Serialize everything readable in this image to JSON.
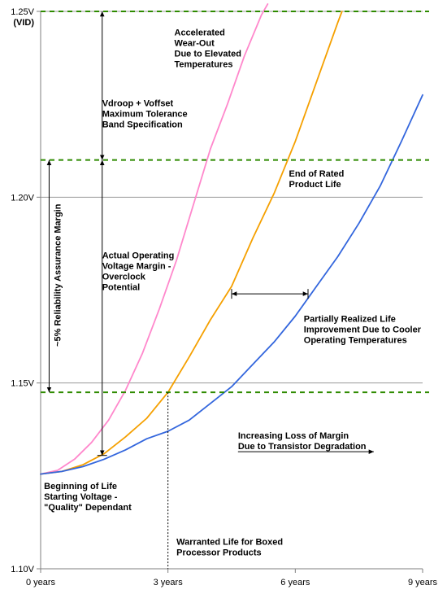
{
  "chart_data": {
    "type": "line",
    "xlabel": "",
    "ylabel": "",
    "xlim": [
      0,
      9
    ],
    "ylim": [
      1.1,
      1.25
    ],
    "x_ticks": [
      {
        "value": 0,
        "label": "0 years"
      },
      {
        "value": 3,
        "label": "3 years"
      },
      {
        "value": 6,
        "label": "6 years"
      },
      {
        "value": 9,
        "label": "9 years"
      }
    ],
    "y_ticks": [
      {
        "value": 1.1,
        "label": "1.10V"
      },
      {
        "value": 1.15,
        "label": "1.15V"
      },
      {
        "value": 1.2,
        "label": "1.20V"
      },
      {
        "value": 1.25,
        "label": "1.25V"
      }
    ],
    "y_top_sublabel": "(VID)",
    "grid": true,
    "reference_lines": [
      {
        "y": 1.25,
        "color": "#2e8b00",
        "style": "dashed"
      },
      {
        "y": 1.21,
        "color": "#2e8b00",
        "style": "dashed"
      },
      {
        "y": 1.1475,
        "color": "#2e8b00",
        "style": "dashed"
      }
    ],
    "series": [
      {
        "color": "#ff88cc",
        "x": [
          0,
          0.4,
          0.8,
          1.2,
          1.6,
          2.0,
          2.4,
          2.8,
          3.2,
          3.6,
          4.0,
          4.4,
          4.8,
          5.2,
          5.35
        ],
        "y": [
          1.1255,
          1.1265,
          1.1295,
          1.134,
          1.14,
          1.148,
          1.158,
          1.17,
          1.183,
          1.198,
          1.213,
          1.225,
          1.238,
          1.249,
          1.252
        ]
      },
      {
        "color": "#f5a000",
        "x": [
          0,
          0.5,
          1.0,
          1.5,
          2.0,
          2.5,
          3.0,
          3.5,
          4.0,
          4.5,
          5.0,
          5.5,
          6.0,
          6.5,
          7.0,
          7.1
        ],
        "y": [
          1.1255,
          1.1262,
          1.128,
          1.131,
          1.1355,
          1.1405,
          1.1475,
          1.157,
          1.167,
          1.176,
          1.189,
          1.201,
          1.215,
          1.231,
          1.247,
          1.25
        ]
      },
      {
        "color": "#3366dd",
        "x": [
          0,
          0.5,
          1.0,
          1.5,
          2.0,
          2.5,
          3.0,
          3.5,
          4.0,
          4.5,
          5.0,
          5.5,
          6.0,
          6.5,
          7.0,
          7.5,
          8.0,
          8.5,
          9.0
        ],
        "y": [
          1.1255,
          1.1262,
          1.1275,
          1.1295,
          1.132,
          1.135,
          1.137,
          1.14,
          1.1445,
          1.149,
          1.155,
          1.161,
          1.168,
          1.176,
          1.184,
          1.193,
          1.203,
          1.215,
          1.2275
        ]
      }
    ],
    "annotations": [
      {
        "id": "wearout",
        "lines": [
          "Accelerated",
          "Wear-Out",
          "Due to Elevated",
          "Temperatures"
        ],
        "x": 3.15,
        "y": 1.2435
      },
      {
        "id": "vdroop",
        "lines": [
          "Vdroop + Voffset",
          "Maximum Tolerance",
          "Band Specification"
        ],
        "x": 1.45,
        "y": 1.2245
      },
      {
        "id": "endlife",
        "lines": [
          "End of Rated",
          "Product Life"
        ],
        "x": 5.85,
        "y": 1.2055
      },
      {
        "id": "margin",
        "lines": [
          "Actual Operating",
          "Voltage Margin -",
          "Overclock",
          "Potential"
        ],
        "x": 1.45,
        "y": 1.1835
      },
      {
        "id": "partial",
        "lines": [
          "Partially Realized Life",
          "Improvement Due to Cooler",
          "Operating Temperatures"
        ],
        "x": 6.2,
        "y": 1.1665
      },
      {
        "id": "reliability",
        "lines": [
          "~5% Reliability Assurance Margin"
        ],
        "x": 0.47,
        "y": 1.179,
        "rotate": -90
      },
      {
        "id": "increasing",
        "lines": [
          "Increasing Loss of Margin",
          "Due to Transistor Degradation"
        ],
        "x": 4.65,
        "y": 1.135
      },
      {
        "id": "beginning",
        "lines": [
          "Beginning of Life",
          "Starting Voltage -",
          "\"Quality\" Dependant"
        ],
        "x": 0.08,
        "y": 1.1215
      },
      {
        "id": "warranted",
        "lines": [
          "Warranted Life for Boxed",
          "Processor Products"
        ],
        "x": 3.2,
        "y": 1.1065
      }
    ],
    "arrows": [
      {
        "id": "vdroop-arrow",
        "x": 1.45,
        "y1": 1.25,
        "y2": 1.21,
        "double": true
      },
      {
        "id": "margin-arrow",
        "x": 1.45,
        "y1": 1.21,
        "y2": 1.1305,
        "double": true
      },
      {
        "id": "reliability-arrow",
        "x": 0.2,
        "y1": 1.21,
        "y2": 1.1475,
        "double": true
      },
      {
        "id": "partial-arrow",
        "y": 1.174,
        "x1": 4.5,
        "x2": 6.3,
        "double": true
      },
      {
        "id": "increasing-arrow",
        "y": 1.1315,
        "x1": 4.65,
        "x2": 7.85,
        "double": false
      }
    ],
    "vertical_marker": {
      "x": 3.0,
      "y_top": 1.1475,
      "y_bottom": 1.1
    }
  }
}
